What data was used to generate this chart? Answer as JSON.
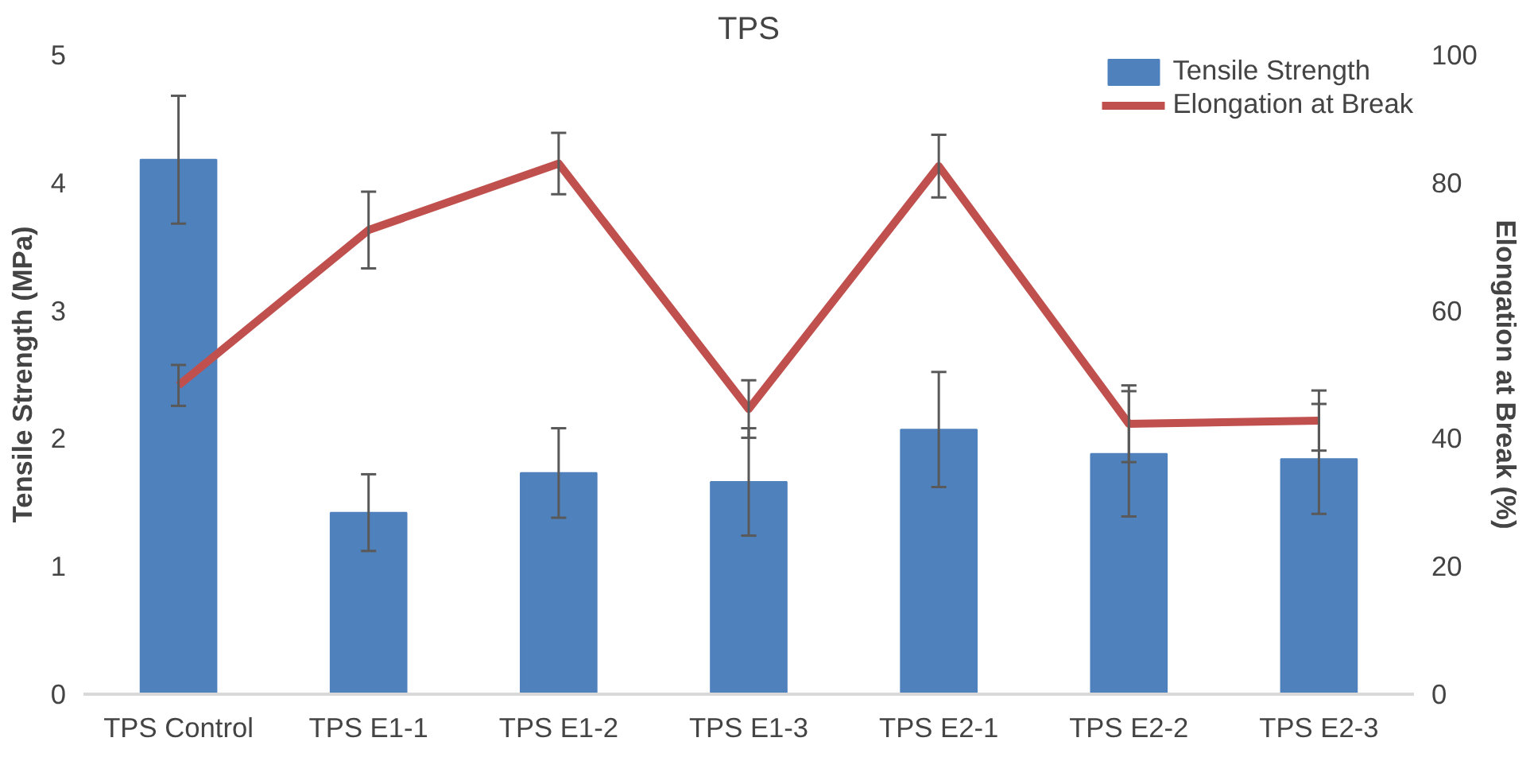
{
  "chart_data": {
    "type": "bar",
    "title": "TPS",
    "ylabel": "Tensile Strength (MPa)",
    "y2label": "Elongation at Break (%)",
    "categories": [
      "TPS Control",
      "TPS E1-1",
      "TPS E1-2",
      "TPS E1-3",
      "TPS E2-1",
      "TPS E2-2",
      "TPS E2-3"
    ],
    "series": [
      {
        "name": "Tensile Strength",
        "color": "#4f81bd",
        "values": [
          4.18,
          1.42,
          1.73,
          1.66,
          2.07,
          1.88,
          1.84
        ],
        "errors": [
          0.5,
          0.3,
          0.35,
          0.42,
          0.45,
          0.49,
          0.43
        ]
      },
      {
        "name": "Elongation at Break",
        "type": "line",
        "axis": "y2",
        "color": "#c0504d",
        "values": [
          48.3,
          72.6,
          83.0,
          44.6,
          82.6,
          42.3,
          42.8
        ],
        "errors": [
          3.2,
          6,
          4.8,
          4.5,
          4.9,
          6,
          4.7
        ]
      }
    ],
    "ylim": [
      0,
      5
    ],
    "yticks": [
      0,
      1,
      2,
      3,
      4,
      5
    ],
    "y2lim": [
      0,
      100
    ],
    "y2ticks": [
      0,
      20,
      40,
      60,
      80,
      100
    ],
    "grid": false,
    "legend": "top right",
    "marker": "none",
    "line_style": "solid"
  }
}
